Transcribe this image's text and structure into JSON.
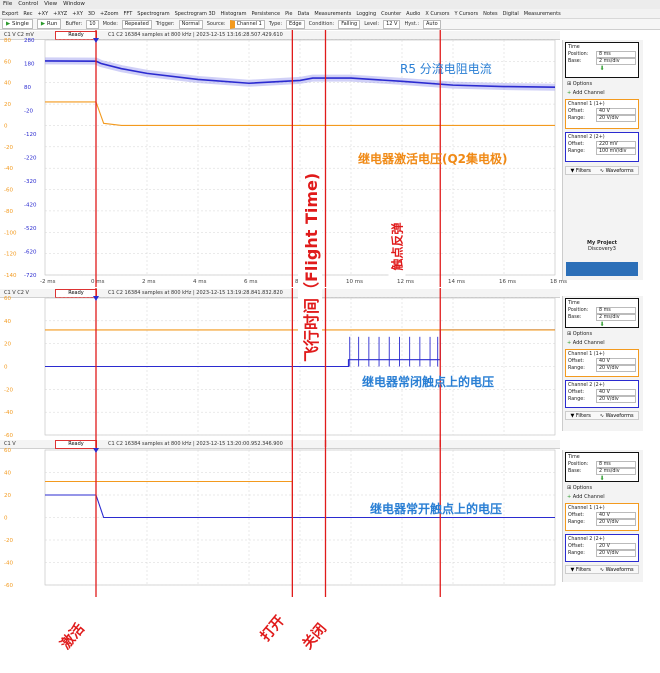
{
  "menubar": [
    "File",
    "Control",
    "View",
    "Window"
  ],
  "toolbar1": [
    "Export",
    "Rec",
    "+XY",
    "+XYZ",
    "+XY",
    "3D",
    "+Zoom",
    "FFT",
    "Spectrogram",
    "Spectrogram 3D",
    "Histogram",
    "Persistence",
    "Pie",
    "Data",
    "Measurements",
    "Logging",
    "Counter",
    "Audio",
    "X Cursors",
    "Y Cursors",
    "Notes",
    "Digital",
    "Measurements"
  ],
  "toolbar2": {
    "single": "Single",
    "run": "Run",
    "buffer_label": "Buffer:",
    "buffer": "10",
    "mode_label": "Mode:",
    "mode": "Repeated",
    "trigger_label": "Trigger:",
    "trigger": "Normal",
    "source_label": "Source:",
    "source": "Channel 1",
    "type_label": "Type:",
    "type": "Edge",
    "condition_label": "Condition:",
    "condition": "Falling",
    "level_label": "Level:",
    "level": "12 V",
    "hyst_label": "Hyst.:",
    "hyst": "Auto"
  },
  "panels": [
    {
      "ch_label": "C1 V  C2 mV",
      "status": "Ready",
      "info": "C1  C2  16384 samples at 800 kHz | 2023-12-15 13:16:28.507.429.610",
      "left_ticks": [
        "80",
        "60",
        "40",
        "20",
        "0",
        "-20",
        "-40",
        "-60",
        "-80",
        "-100",
        "-120",
        "-140"
      ],
      "right_ticks": [
        "280",
        "180",
        "80",
        "-20",
        "-120",
        "-220",
        "-320",
        "-420",
        "-520",
        "-620",
        "-720"
      ],
      "x_ticks": [
        "-2 ms",
        "0 ms",
        "2 ms",
        "4 ms",
        "6 ms",
        "8 ms",
        "10 ms",
        "12 ms",
        "14 ms",
        "16 ms",
        "18 ms"
      ]
    },
    {
      "ch_label": "C1 V  C2 V",
      "status": "Ready",
      "info": "C1  C2  16384 samples at 800 kHz | 2023-12-15 13:19:28.841.832.820",
      "left_ticks": [
        "60",
        "40",
        "20",
        "0",
        "-20",
        "-40",
        "-60"
      ]
    },
    {
      "ch_label": "C1 V",
      "status": "Ready",
      "info": "C1  C2  16384 samples at 800 kHz | 2023-12-15 13:20:00.952.346.900",
      "left_ticks": [
        "60",
        "40",
        "20",
        "0",
        "-20",
        "-40",
        "-60"
      ]
    }
  ],
  "side_panels": [
    {
      "time_title": "Time",
      "position_label": "Position:",
      "position": "8 ms",
      "base_label": "Base:",
      "base": "2 ms/div",
      "options": "Options",
      "add_channel": "Add Channel",
      "ch1_title": "Channel 1 (1+)",
      "ch1_offset_label": "Offset:",
      "ch1_offset": "40 V",
      "ch1_range_label": "Range:",
      "ch1_range": "20 V/div",
      "ch2_title": "Channel 2 (2+)",
      "ch2_offset_label": "Offset:",
      "ch2_offset": "220 mV",
      "ch2_range_label": "Range:",
      "ch2_range": "100 mV/div",
      "filters": "Filters",
      "waveforms": "Waveforms"
    },
    {
      "time_title": "Time",
      "position_label": "Position:",
      "position": "8 ms",
      "base_label": "Base:",
      "base": "2 ms/div",
      "options": "Options",
      "add_channel": "Add Channel",
      "ch1_title": "Channel 1 (1+)",
      "ch1_offset_label": "Offset:",
      "ch1_offset": "40 V",
      "ch1_range_label": "Range:",
      "ch1_range": "20 V/div",
      "ch2_title": "Channel 2 (2+)",
      "ch2_offset_label": "Offset:",
      "ch2_offset": "40 V",
      "ch2_range_label": "Range:",
      "ch2_range": "20 V/div",
      "filters": "Filters",
      "waveforms": "Waveforms"
    },
    {
      "time_title": "Time",
      "position_label": "Position:",
      "position": "8 ms",
      "base_label": "Base:",
      "base": "2 ms/div",
      "options": "Options",
      "add_channel": "Add Channel",
      "ch1_title": "Channel 1 (1+)",
      "ch1_offset_label": "Offset:",
      "ch1_offset": "40 V",
      "ch1_range_label": "Range:",
      "ch1_range": "20 V/div",
      "ch2_title": "Channel 2 (2+)",
      "ch2_offset_label": "Offset:",
      "ch2_offset": "20 V",
      "ch2_range_label": "Range:",
      "ch2_range": "20 V/div",
      "filters": "Filters",
      "waveforms": "Waveforms"
    }
  ],
  "project": {
    "name": "My Project",
    "sub": "Discovery3"
  },
  "annotations": {
    "r5_current": "R5 分流电阻电流",
    "relay_activate_voltage": "继电器激活电压(Q2集电极)",
    "flight_time": "飞行时间（Flight Time)",
    "contact_bounce": "触点反弹",
    "nc_contact_voltage": "继电器常闭触点上的电压",
    "no_contact_voltage": "继电器常开触点上的电压",
    "activate": "激活",
    "open": "打开",
    "close": "关闭"
  },
  "colors": {
    "ch1": "#f39a1e",
    "ch2": "#2b2bd0",
    "marker": "#e01b1b",
    "annotation_blue": "#2a7fd4",
    "annotation_orange": "#f08a16"
  },
  "chart_data": [
    {
      "type": "line",
      "title": "",
      "x_unit": "ms",
      "xlim": [
        -2,
        18
      ],
      "series": [
        {
          "name": "R5 分流电阻电流",
          "axis": "right",
          "x": [
            -2,
            0,
            0.2,
            1,
            2,
            4,
            6,
            8,
            8.5,
            10,
            12,
            14,
            16,
            18
          ],
          "y": [
            191,
            190,
            180,
            158,
            138,
            112,
            96,
            108,
            118,
            118,
            104,
            88,
            82,
            79
          ]
        },
        {
          "name": "继电器激活电压(Q2集电极)",
          "axis": "left",
          "x": [
            -2,
            0,
            0.3,
            1,
            18
          ],
          "y": [
            22,
            22,
            2,
            0,
            0
          ]
        }
      ],
      "markers_ms": [
        0,
        7.7,
        9.0,
        13.5
      ]
    },
    {
      "type": "line",
      "title": "",
      "x_unit": "ms",
      "xlim": [
        -2,
        18
      ],
      "series": [
        {
          "name": "继电器常闭触点上的电压",
          "x": [
            -2,
            9.9,
            9.9,
            13.5,
            13.5,
            18
          ],
          "y": [
            0,
            0,
            6,
            6,
            32,
            32
          ]
        },
        {
          "name": "",
          "x": [
            -2,
            18
          ],
          "y": [
            32,
            32
          ]
        }
      ],
      "markers_ms": [
        0,
        7.7,
        9.0,
        13.5
      ]
    },
    {
      "type": "line",
      "title": "",
      "x_unit": "ms",
      "xlim": [
        -2,
        18
      ],
      "series": [
        {
          "name": "继电器常开触点上的电压",
          "x": [
            -2,
            7.7,
            7.7,
            18
          ],
          "y": [
            32,
            32,
            0,
            0
          ]
        },
        {
          "name": "",
          "x": [
            -2,
            0,
            0.3,
            18
          ],
          "y": [
            20,
            20,
            0,
            0
          ]
        }
      ],
      "markers_ms": [
        0,
        7.7,
        9.0,
        13.5
      ]
    }
  ]
}
